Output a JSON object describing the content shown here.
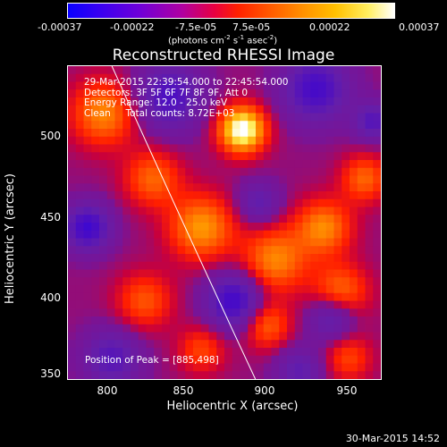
{
  "colorbar": {
    "ticks": [
      "-0.00037",
      "-0.00022",
      "-7.5e-05",
      "7.5e-05",
      "0.00022",
      "0.00037"
    ],
    "units_prefix": "(photons cm",
    "units_exp1": "-2",
    "units_mid": " s",
    "units_exp2": "-1",
    "units_mid2": " asec",
    "units_exp3": "-2",
    "units_suffix": ")"
  },
  "plot": {
    "title": "Reconstructed RHESSI Image",
    "info_lines": [
      "29-Mar-2015 22:39:54.000 to 22:45:54.000",
      "Detectors: 3F 5F 6F 7F 8F 9F, Att 0",
      "Energy Range: 12.0 - 25.0 keV",
      "Clean     Total counts: 8.72E+03"
    ],
    "peak_label": "Position of Peak = [885,498]",
    "xlabel": "Heliocentric X (arcsec)",
    "ylabel": "Heliocentric Y (arcsec)",
    "xticks": [
      "800",
      "850",
      "900",
      "950"
    ],
    "yticks": [
      "500",
      "450",
      "400",
      "350"
    ]
  },
  "footer": {
    "timestamp": "30-Mar-2015 14:52"
  },
  "chart_data": {
    "type": "heatmap",
    "title": "Reconstructed RHESSI Image",
    "xlabel": "Heliocentric X (arcsec)",
    "ylabel": "Heliocentric Y (arcsec)",
    "xlim": [
      778,
      970
    ],
    "ylim": [
      347,
      539
    ],
    "value_range": [
      -0.00037,
      0.00037
    ],
    "peak": [
      885,
      498
    ],
    "colormap": "blue-purple-red-yellow-white",
    "limb_curve_x_at_y": [
      [
        805,
        539
      ],
      [
        845,
        450
      ],
      [
        893,
        347
      ]
    ]
  }
}
